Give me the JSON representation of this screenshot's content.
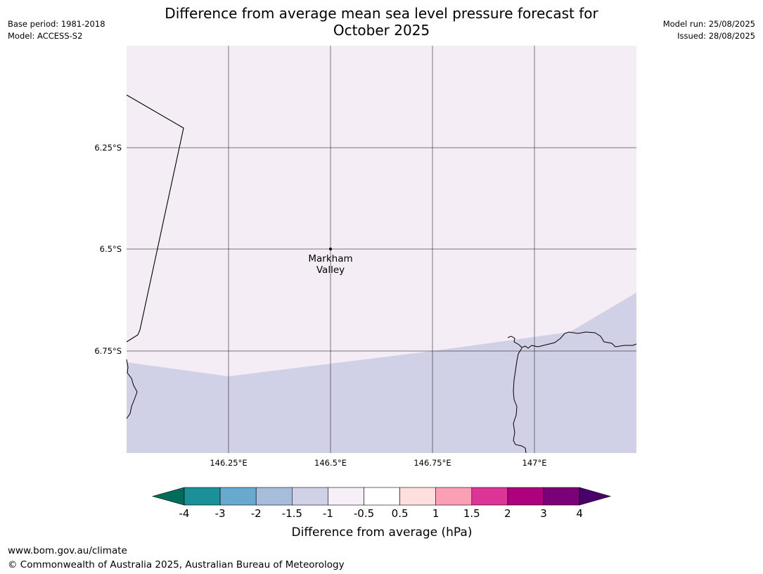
{
  "title_line1": "Difference from average mean sea level pressure forecast for",
  "title_line2": "October 2025",
  "meta_left": [
    "Base period: 1981-2018",
    "Model: ACCESS-S2"
  ],
  "meta_right": [
    "Model run: 25/08/2025",
    "Issued: 28/08/2025"
  ],
  "map": {
    "lat_labels": [
      "6.25°S",
      "6.5°S",
      "6.75°S"
    ],
    "lon_labels": [
      "146.25°E",
      "146.5°E",
      "146.75°E",
      "147°E"
    ],
    "place": {
      "name_line1": "Markham",
      "name_line2": "Valley"
    },
    "field_colors": {
      "upper": "#f4edf5",
      "lower": "#d0d1e6"
    }
  },
  "colorbar": {
    "tick_labels": [
      "-4",
      "-3",
      "-2",
      "-1.5",
      "-1",
      "-0.5",
      "0.5",
      "1",
      "1.5",
      "2",
      "3",
      "4"
    ],
    "colors": [
      "#016c59",
      "#1c9099",
      "#67a9cf",
      "#a6bddb",
      "#d0d1e6",
      "#f6eff7",
      "#ffffff",
      "#fde0dd",
      "#fa9fb5",
      "#dd3497",
      "#ae017e",
      "#7a0177",
      "#49006a"
    ],
    "label": "Difference from average (hPa)"
  },
  "footer": {
    "line1": "www.bom.gov.au/climate",
    "line2": "© Commonwealth of Australia 2025, Australian Bureau of Meteorology"
  }
}
